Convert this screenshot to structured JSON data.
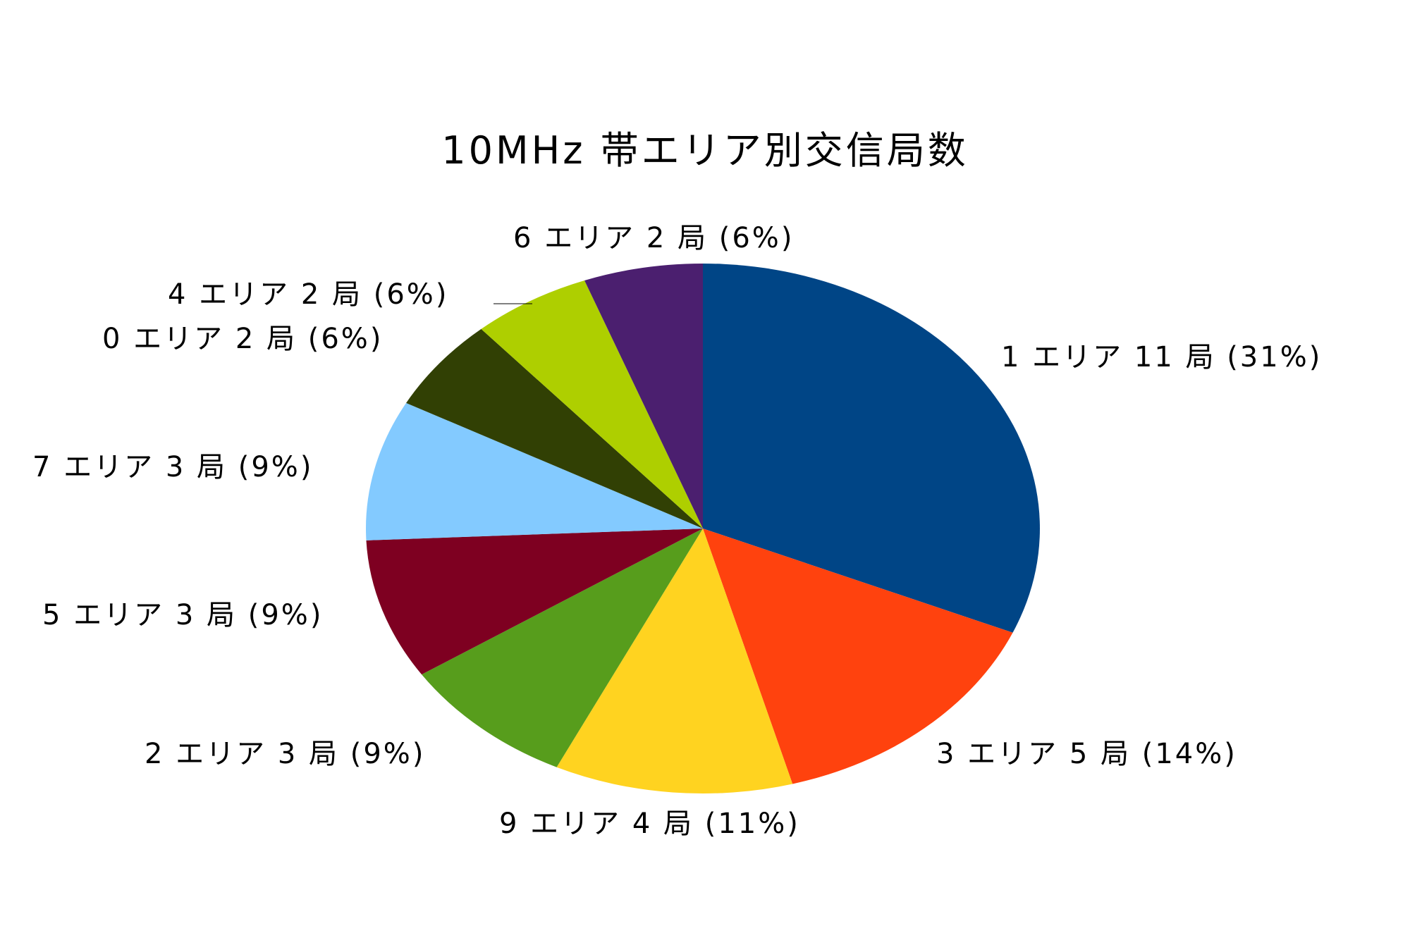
{
  "chart_data": {
    "type": "pie",
    "title": "10MHz 帯エリア別交信局数",
    "start": "top",
    "direction": "clockwise",
    "slices": [
      {
        "label": "1 エリア 11 局 (31%)",
        "category": "1 エリア",
        "value": 11,
        "percent": 31,
        "color": "#004586"
      },
      {
        "label": "3 エリア 5 局 (14%)",
        "category": "3 エリア",
        "value": 5,
        "percent": 14,
        "color": "#FF420E"
      },
      {
        "label": "9 エリア 4 局 (11%)",
        "category": "9 エリア",
        "value": 4,
        "percent": 11,
        "color": "#FFD320"
      },
      {
        "label": "2 エリア 3 局 (9%)",
        "category": "2 エリア",
        "value": 3,
        "percent": 9,
        "color": "#579D1C"
      },
      {
        "label": "5 エリア 3 局 (9%)",
        "category": "5 エリア",
        "value": 3,
        "percent": 9,
        "color": "#7E0021"
      },
      {
        "label": "7 エリア 3 局 (9%)",
        "category": "7 エリア",
        "value": 3,
        "percent": 9,
        "color": "#83CAFF"
      },
      {
        "label": "0 エリア 2 局 (6%)",
        "category": "0 エリア",
        "value": 2,
        "percent": 6,
        "color": "#314004"
      },
      {
        "label": "4 エリア 2 局 (6%)",
        "category": "4 エリア",
        "value": 2,
        "percent": 6,
        "color": "#AECF00"
      },
      {
        "label": "6 エリア 2 局 (6%)",
        "category": "6 エリア",
        "value": 2,
        "percent": 6,
        "color": "#4B1F6F"
      }
    ]
  }
}
